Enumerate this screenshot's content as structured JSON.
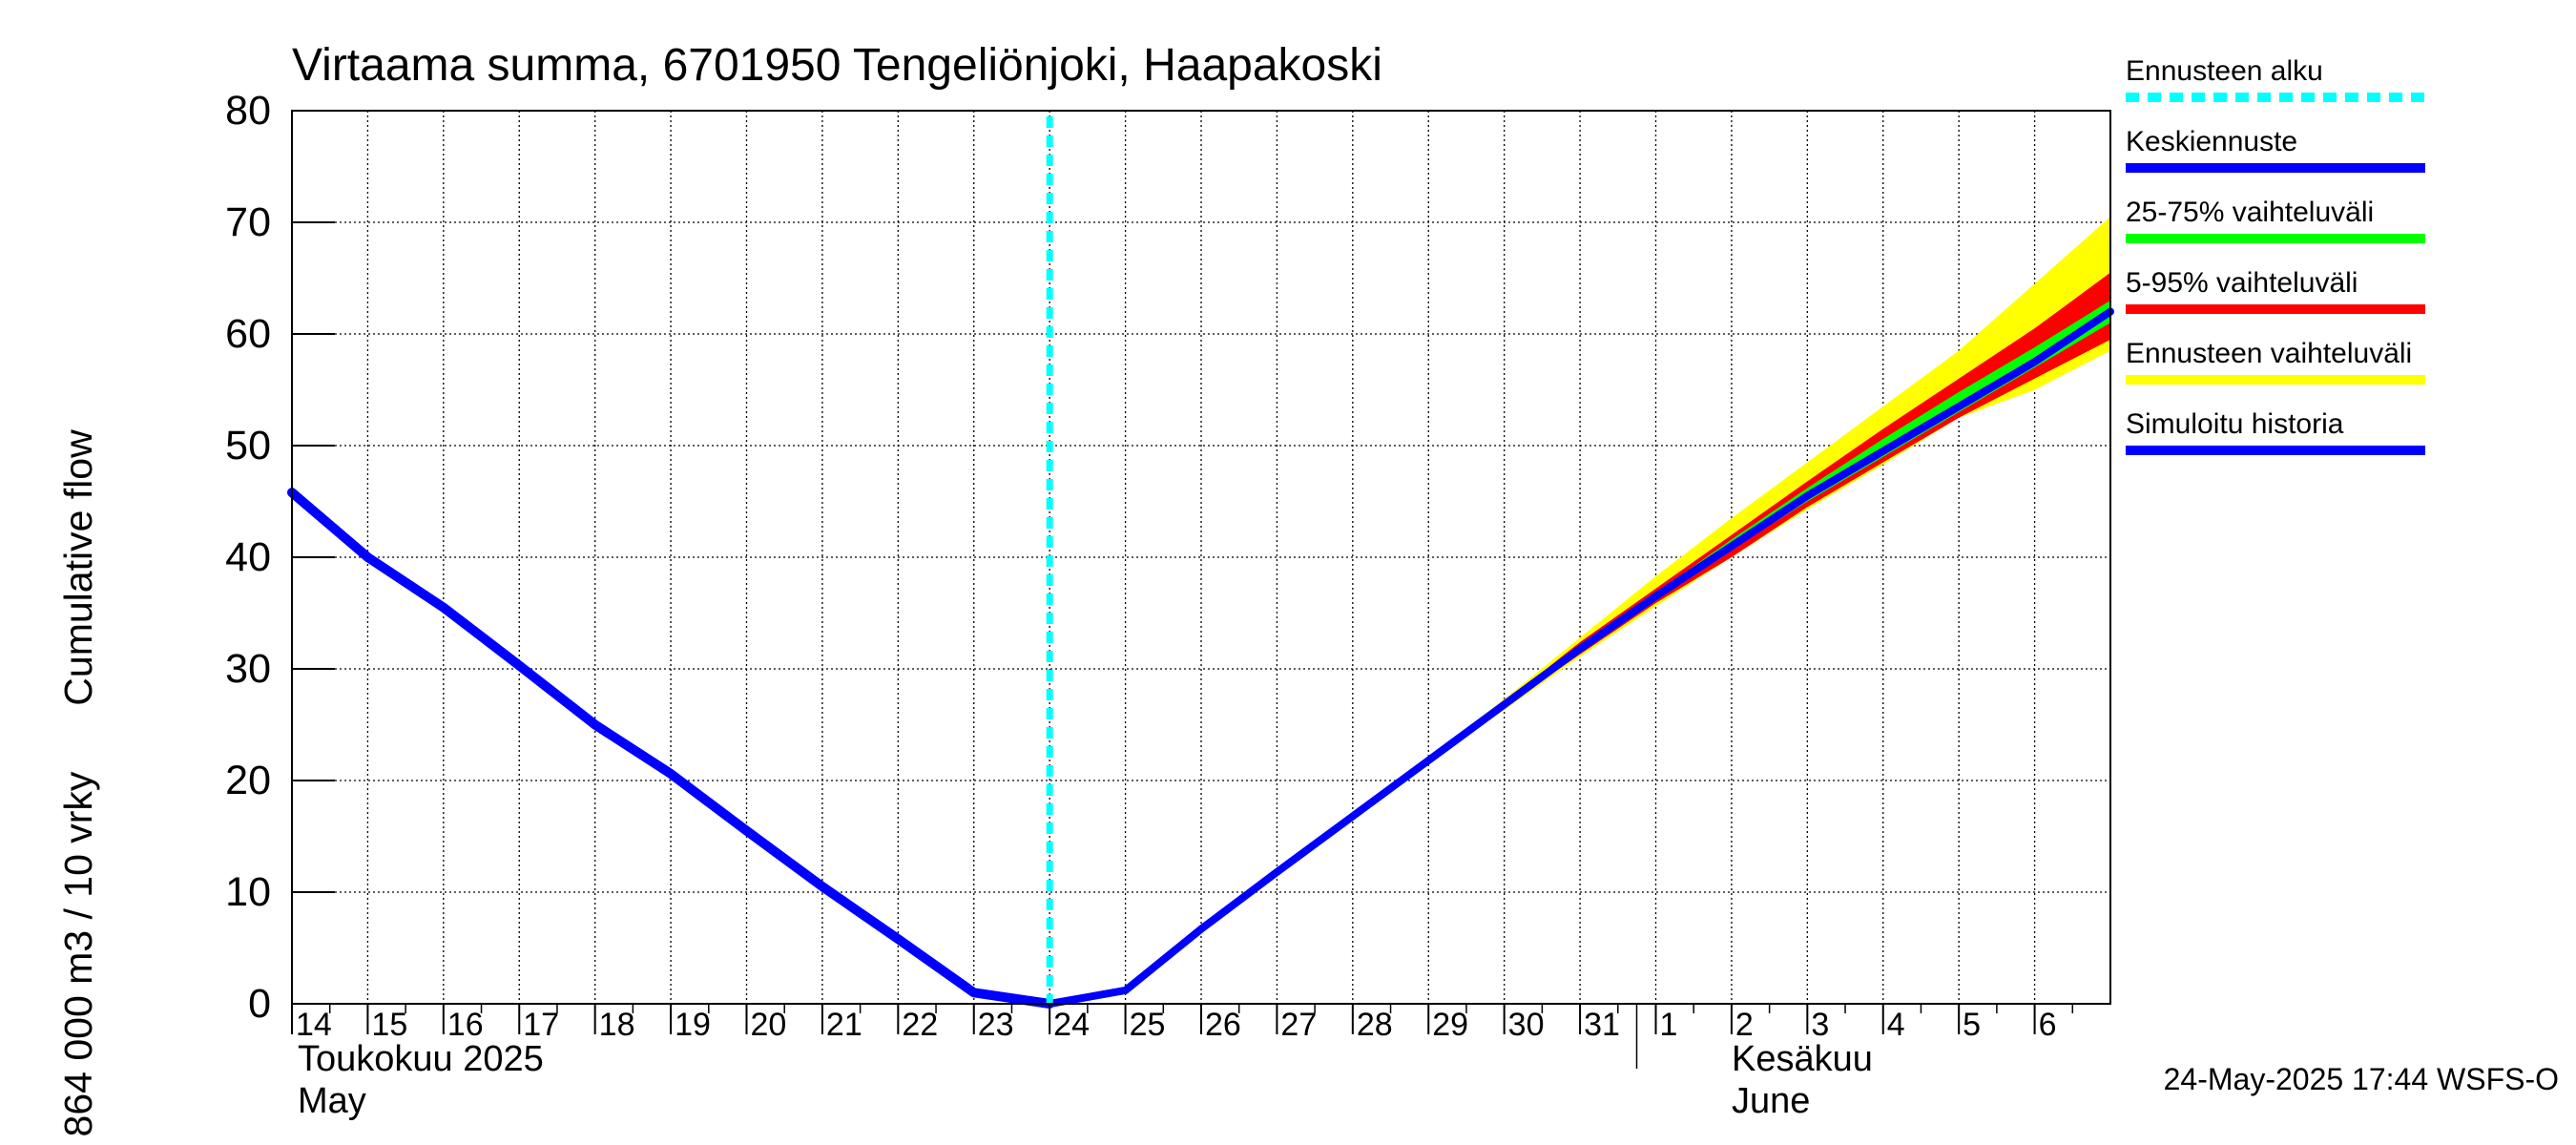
{
  "chart_data": {
    "type": "line",
    "title": "Virtaama summa, 6701950 Tengeliönjoki, Haapakoski",
    "ylabel_line1": "Cumulative flow",
    "ylabel_line2": "864 000 m3 / 10 vrky",
    "ylim": [
      0,
      80
    ],
    "yticks": [
      0,
      10,
      20,
      30,
      40,
      50,
      60,
      70,
      80
    ],
    "xlim": [
      14,
      38
    ],
    "x_tick_labels": [
      "14",
      "15",
      "16",
      "17",
      "18",
      "19",
      "20",
      "21",
      "22",
      "23",
      "24",
      "25",
      "26",
      "27",
      "28",
      "29",
      "30",
      "31",
      "1",
      "2",
      "3",
      "4",
      "5",
      "6"
    ],
    "month_labels": {
      "may_fi": "Toukokuu  2025",
      "may_en": "May",
      "june_fi": "Kesäkuu",
      "june_en": "June"
    },
    "forecast_start": 24.0,
    "history": {
      "name": "Simuloitu historia",
      "x": [
        14,
        15,
        16,
        17,
        18,
        19,
        20,
        21,
        22,
        23,
        24
      ],
      "y": [
        45.8,
        40.0,
        35.5,
        30.3,
        25.0,
        20.6,
        15.5,
        10.5,
        5.8,
        1.0,
        0.0
      ]
    },
    "mean_forecast": {
      "name": "Keskiennuste",
      "x": [
        24,
        25,
        26,
        27,
        28,
        29,
        30,
        31,
        32,
        33,
        34,
        35,
        36,
        37,
        38
      ],
      "y": [
        0.0,
        1.2,
        6.7,
        11.8,
        16.8,
        21.8,
        26.8,
        31.8,
        36.5,
        41.0,
        45.5,
        49.5,
        53.5,
        57.5,
        62.0
      ]
    },
    "band_full": {
      "name": "Ennusteen vaihteluväli",
      "x": [
        29,
        30,
        31,
        32,
        33,
        34,
        35,
        36,
        37,
        38
      ],
      "upper": [
        22.0,
        27.3,
        32.8,
        38.3,
        43.5,
        48.5,
        53.5,
        58.5,
        64.5,
        70.5
      ],
      "lower": [
        21.6,
        26.3,
        31.1,
        35.6,
        40.0,
        44.3,
        48.3,
        52.5,
        55.0,
        58.5
      ]
    },
    "band_5_95": {
      "name": "5-95% vaihteluväli",
      "x": [
        30,
        31,
        32,
        33,
        34,
        35,
        36,
        37,
        38
      ],
      "upper": [
        27.0,
        32.4,
        37.2,
        42.0,
        46.8,
        51.5,
        56.0,
        60.5,
        65.5
      ],
      "lower": [
        26.6,
        31.3,
        35.9,
        40.0,
        44.5,
        48.5,
        52.5,
        56.0,
        59.5
      ]
    },
    "band_25_75": {
      "name": "25-75% vaihteluväli",
      "x": [
        31,
        32,
        33,
        34,
        35,
        36,
        37,
        38
      ],
      "upper": [
        31.9,
        36.8,
        41.6,
        46.2,
        50.6,
        54.8,
        58.8,
        63.0
      ],
      "lower": [
        31.7,
        36.3,
        40.7,
        45.0,
        49.0,
        53.0,
        57.0,
        61.0
      ]
    },
    "legend": [
      {
        "label": "Ennusteen alku",
        "color": "#00ffff",
        "style": "dashed"
      },
      {
        "label": "Keskiennuste",
        "color": "#0000ff",
        "style": "solid"
      },
      {
        "label": "25-75% vaihteluväli",
        "color": "#00ff00",
        "style": "solid"
      },
      {
        "label": "5-95% vaihteluväli",
        "color": "#ff0000",
        "style": "solid"
      },
      {
        "label": "Ennusteen vaihteluväli",
        "color": "#ffff00",
        "style": "solid"
      },
      {
        "label": "Simuloitu historia",
        "color": "#0000ff",
        "style": "solid"
      }
    ],
    "footer": "24-May-2025 17:44 WSFS-O"
  }
}
